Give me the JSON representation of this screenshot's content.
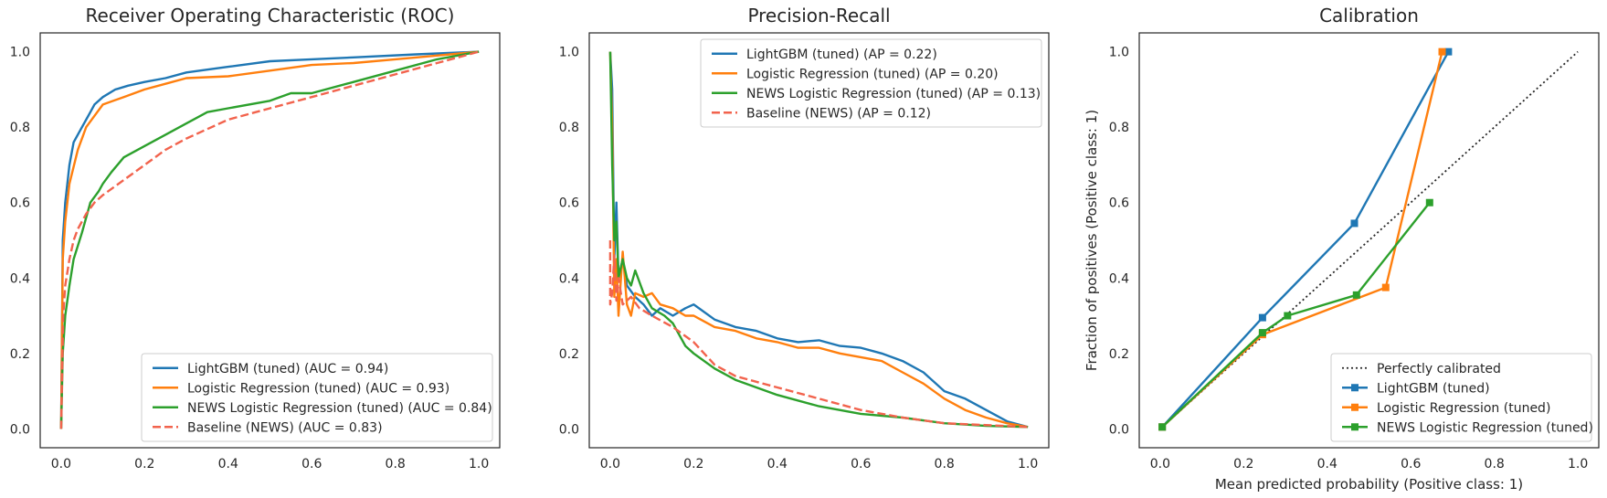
{
  "chart_data": [
    {
      "type": "line",
      "title": "Receiver Operating Characteristic (ROC)",
      "xlabel": "",
      "ylabel": "",
      "xlim": [
        -0.05,
        1.05
      ],
      "ylim": [
        -0.05,
        1.05
      ],
      "xticks": [
        "0.0",
        "0.2",
        "0.4",
        "0.6",
        "0.8",
        "1.0"
      ],
      "yticks": [
        "0.0",
        "0.2",
        "0.4",
        "0.6",
        "0.8",
        "1.0"
      ],
      "grid": false,
      "legend_position": "lower-right",
      "series": [
        {
          "name": "LightGBM (tuned) (AUC = 0.94)",
          "color": "#1f77b4",
          "dash": "solid",
          "x": [
            0,
            0.004,
            0.01,
            0.02,
            0.03,
            0.05,
            0.07,
            0.08,
            0.1,
            0.13,
            0.16,
            0.2,
            0.25,
            0.3,
            0.4,
            0.5,
            0.6,
            0.7,
            0.85,
            1.0
          ],
          "y": [
            0,
            0.5,
            0.6,
            0.7,
            0.76,
            0.8,
            0.84,
            0.86,
            0.88,
            0.9,
            0.91,
            0.92,
            0.93,
            0.945,
            0.96,
            0.975,
            0.98,
            0.985,
            0.993,
            1.0
          ]
        },
        {
          "name": "Logistic Regression (tuned) (AUC = 0.93)",
          "color": "#ff7f0e",
          "dash": "solid",
          "x": [
            0,
            0.004,
            0.01,
            0.02,
            0.04,
            0.06,
            0.08,
            0.1,
            0.15,
            0.2,
            0.25,
            0.3,
            0.4,
            0.5,
            0.6,
            0.7,
            0.8,
            0.9,
            1.0
          ],
          "y": [
            0,
            0.45,
            0.55,
            0.65,
            0.74,
            0.8,
            0.83,
            0.86,
            0.88,
            0.9,
            0.915,
            0.93,
            0.935,
            0.95,
            0.965,
            0.97,
            0.98,
            0.99,
            1.0
          ]
        },
        {
          "name": "NEWS Logistic Regression (tuned) (AUC = 0.84)",
          "color": "#2ca02c",
          "dash": "solid",
          "x": [
            0,
            0.004,
            0.01,
            0.02,
            0.03,
            0.05,
            0.07,
            0.09,
            0.1,
            0.12,
            0.15,
            0.2,
            0.25,
            0.3,
            0.35,
            0.4,
            0.5,
            0.55,
            0.6,
            0.7,
            0.8,
            0.9,
            1.0
          ],
          "y": [
            0,
            0.2,
            0.3,
            0.38,
            0.45,
            0.52,
            0.6,
            0.63,
            0.65,
            0.68,
            0.72,
            0.75,
            0.78,
            0.81,
            0.84,
            0.85,
            0.87,
            0.89,
            0.89,
            0.92,
            0.95,
            0.98,
            1.0
          ]
        },
        {
          "name": "Baseline (NEWS) (AUC = 0.83)",
          "color": "#f2634d",
          "dash": "dashed",
          "x": [
            0,
            0.005,
            0.01,
            0.02,
            0.03,
            0.04,
            0.06,
            0.08,
            0.1,
            0.15,
            0.2,
            0.25,
            0.3,
            0.4,
            0.5,
            0.6,
            0.7,
            0.8,
            0.9,
            1.0
          ],
          "y": [
            0,
            0.3,
            0.38,
            0.45,
            0.5,
            0.53,
            0.57,
            0.6,
            0.62,
            0.66,
            0.7,
            0.74,
            0.77,
            0.82,
            0.85,
            0.88,
            0.91,
            0.94,
            0.97,
            1.0
          ]
        }
      ]
    },
    {
      "type": "line",
      "title": "Precision-Recall",
      "xlabel": "",
      "ylabel": "",
      "xlim": [
        -0.05,
        1.05
      ],
      "ylim": [
        -0.05,
        1.05
      ],
      "xticks": [
        "0.0",
        "0.2",
        "0.4",
        "0.6",
        "0.8",
        "1.0"
      ],
      "yticks": [
        "0.0",
        "0.2",
        "0.4",
        "0.6",
        "0.8",
        "1.0"
      ],
      "grid": false,
      "legend_position": "upper-right",
      "series": [
        {
          "name": "LightGBM (tuned) (AP = 0.22)",
          "color": "#1f77b4",
          "dash": "solid",
          "x": [
            0.0,
            0.005,
            0.01,
            0.015,
            0.02,
            0.03,
            0.04,
            0.06,
            0.08,
            0.1,
            0.12,
            0.15,
            0.18,
            0.2,
            0.25,
            0.3,
            0.35,
            0.4,
            0.45,
            0.5,
            0.55,
            0.6,
            0.65,
            0.7,
            0.75,
            0.8,
            0.85,
            0.9,
            0.95,
            1.0
          ],
          "y": [
            1.0,
            0.9,
            0.45,
            0.6,
            0.4,
            0.45,
            0.38,
            0.35,
            0.33,
            0.3,
            0.32,
            0.3,
            0.32,
            0.33,
            0.29,
            0.27,
            0.26,
            0.24,
            0.23,
            0.235,
            0.22,
            0.215,
            0.2,
            0.18,
            0.15,
            0.1,
            0.08,
            0.05,
            0.02,
            0.005
          ]
        },
        {
          "name": "Logistic Regression (tuned) (AP = 0.20)",
          "color": "#ff7f0e",
          "dash": "solid",
          "x": [
            0.0,
            0.005,
            0.01,
            0.015,
            0.02,
            0.03,
            0.04,
            0.05,
            0.06,
            0.08,
            0.1,
            0.12,
            0.15,
            0.18,
            0.2,
            0.25,
            0.3,
            0.35,
            0.4,
            0.45,
            0.5,
            0.55,
            0.6,
            0.65,
            0.7,
            0.75,
            0.8,
            0.85,
            0.9,
            0.95,
            1.0
          ],
          "y": [
            1.0,
            0.8,
            0.35,
            0.45,
            0.3,
            0.47,
            0.33,
            0.3,
            0.36,
            0.35,
            0.36,
            0.33,
            0.32,
            0.3,
            0.3,
            0.27,
            0.26,
            0.24,
            0.23,
            0.215,
            0.215,
            0.2,
            0.19,
            0.18,
            0.15,
            0.12,
            0.08,
            0.05,
            0.03,
            0.015,
            0.005
          ]
        },
        {
          "name": "NEWS Logistic Regression (tuned) (AP = 0.13)",
          "color": "#2ca02c",
          "dash": "solid",
          "x": [
            0.0,
            0.005,
            0.01,
            0.015,
            0.02,
            0.03,
            0.04,
            0.05,
            0.06,
            0.08,
            0.1,
            0.13,
            0.15,
            0.18,
            0.2,
            0.25,
            0.3,
            0.35,
            0.4,
            0.5,
            0.6,
            0.7,
            0.8,
            0.9,
            1.0
          ],
          "y": [
            1.0,
            0.7,
            0.5,
            0.55,
            0.4,
            0.45,
            0.4,
            0.38,
            0.42,
            0.36,
            0.32,
            0.3,
            0.28,
            0.22,
            0.2,
            0.16,
            0.13,
            0.11,
            0.09,
            0.06,
            0.04,
            0.03,
            0.015,
            0.008,
            0.005
          ]
        },
        {
          "name": "Baseline (NEWS) (AP = 0.12)",
          "color": "#f2634d",
          "dash": "dashed",
          "x": [
            0.0,
            0.0,
            0.005,
            0.01,
            0.015,
            0.02,
            0.03,
            0.05,
            0.07,
            0.1,
            0.15,
            0.2,
            0.25,
            0.3,
            0.4,
            0.5,
            0.6,
            0.7,
            0.8,
            0.9,
            1.0
          ],
          "y": [
            0.5,
            0.33,
            0.36,
            0.46,
            0.34,
            0.4,
            0.33,
            0.35,
            0.32,
            0.3,
            0.27,
            0.23,
            0.17,
            0.14,
            0.11,
            0.08,
            0.05,
            0.03,
            0.015,
            0.01,
            0.005
          ]
        }
      ]
    },
    {
      "type": "line",
      "title": "Calibration",
      "xlabel": "Mean predicted probability (Positive class: 1)",
      "ylabel": "Fraction of positives (Positive class: 1)",
      "xlim": [
        -0.05,
        1.05
      ],
      "ylim": [
        -0.05,
        1.05
      ],
      "xticks": [
        "0.0",
        "0.2",
        "0.4",
        "0.6",
        "0.8",
        "1.0"
      ],
      "yticks": [
        "0.0",
        "0.2",
        "0.4",
        "0.6",
        "0.8",
        "1.0"
      ],
      "grid": false,
      "legend_position": "lower-right",
      "series": [
        {
          "name": "Perfectly calibrated",
          "color": "#262626",
          "dash": "dotted",
          "marker": false,
          "x": [
            0,
            1
          ],
          "y": [
            0,
            1
          ]
        },
        {
          "name": "LightGBM (tuned)",
          "color": "#1f77b4",
          "dash": "solid",
          "marker": true,
          "x": [
            0.005,
            0.245,
            0.465,
            0.69
          ],
          "y": [
            0.005,
            0.295,
            0.545,
            1.0
          ]
        },
        {
          "name": "Logistic Regression (tuned)",
          "color": "#ff7f0e",
          "dash": "solid",
          "marker": true,
          "x": [
            0.005,
            0.245,
            0.54,
            0.675
          ],
          "y": [
            0.005,
            0.25,
            0.375,
            1.0
          ]
        },
        {
          "name": "NEWS Logistic Regression (tuned)",
          "color": "#2ca02c",
          "dash": "solid",
          "marker": true,
          "x": [
            0.005,
            0.245,
            0.305,
            0.47,
            0.645
          ],
          "y": [
            0.005,
            0.255,
            0.3,
            0.355,
            0.6
          ]
        }
      ]
    }
  ]
}
